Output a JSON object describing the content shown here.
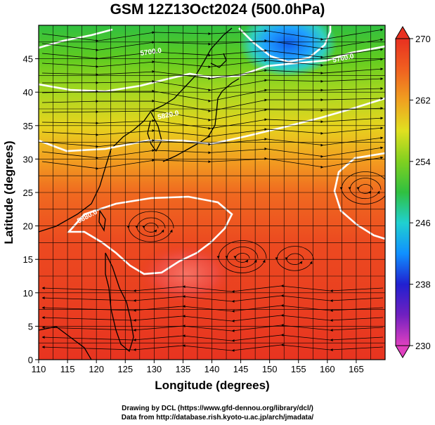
{
  "title": "GSM 12Z13Oct2024 (500.0hPa)",
  "axes": {
    "xlabel": "Longitude (degrees)",
    "ylabel": "Latitude  (degrees)",
    "x_ticks": [
      "110",
      "115",
      "120",
      "125",
      "130",
      "135",
      "140",
      "145",
      "150",
      "155",
      "160",
      "165"
    ],
    "y_ticks": [
      "0",
      "5",
      "10",
      "15",
      "20",
      "25",
      "30",
      "35",
      "40",
      "45"
    ],
    "x_range": [
      110,
      170
    ],
    "y_range": [
      0,
      50
    ]
  },
  "colorbar": {
    "ticks": [
      "230",
      "238",
      "246",
      "254",
      "262",
      "270"
    ],
    "range": [
      230,
      270
    ],
    "colors": [
      "#e040c0",
      "#7020c0",
      "#2020d0",
      "#1090ff",
      "#20d0d0",
      "#30c040",
      "#80d020",
      "#e0e020",
      "#f0a020",
      "#f06020",
      "#e83020"
    ]
  },
  "contour_labels": [
    "5700.0",
    "5760.0",
    "5820.0",
    "5880.0"
  ],
  "credits": [
    "Drawing by DCL (https://www.gfd-dennou.org/library/dcl/)",
    "Data from http://database.rish.kyoto-u.ac.jp/arch/jmadata/"
  ]
}
